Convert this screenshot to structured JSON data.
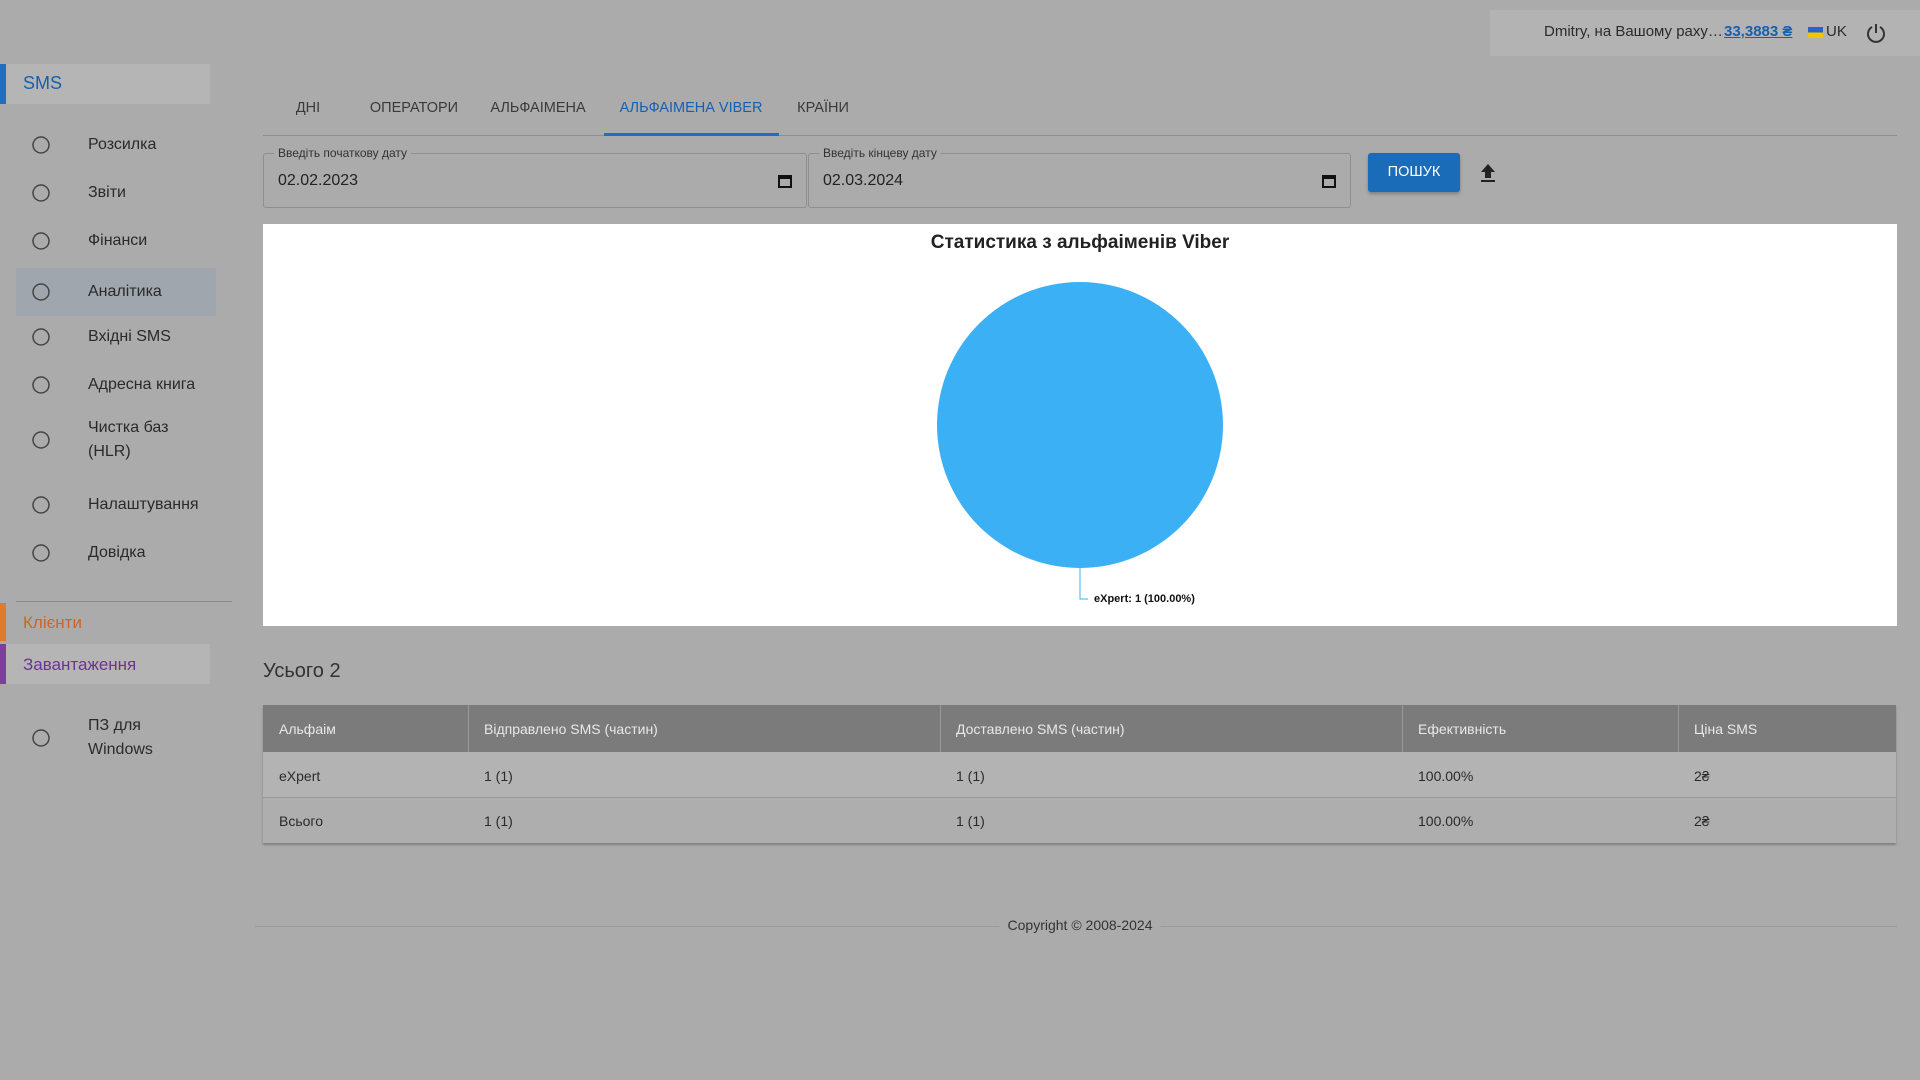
{
  "header": {
    "user": "Dmitry, на Вашому раху…",
    "balance": "33,3883 ₴",
    "language": "UK"
  },
  "sidebar": {
    "section": "SMS",
    "items": [
      "Розсилка",
      "Звіти",
      "Фінанси",
      "Аналітика",
      "Вхідні SMS",
      "Адресна книга",
      "Чистка баз (HLR)",
      "Налаштування",
      "Довідка"
    ],
    "clients": "Клієнти",
    "downloads": "Завантаження",
    "software": "ПЗ для Windows"
  },
  "tabs": [
    "ДНІ",
    "ОПЕРАТОРИ",
    "АЛЬФАІМЕНА",
    "АЛЬФАІМЕНА VIBER",
    "КРАЇНИ"
  ],
  "filters": {
    "start_label": "Введіть початкову дату",
    "start_value": "02.02.2023",
    "end_label": "Введіть кінцеву дату",
    "end_value": "02.03.2024",
    "search": "ПОШУК"
  },
  "chart_data": {
    "type": "pie",
    "title": "Статистика з альфаіменів Viber",
    "categories": [
      "eXpert"
    ],
    "values": [
      1
    ],
    "value_labels": [
      "eXpert: 1 (100.00%)"
    ],
    "colors": [
      "#3bb0f5"
    ]
  },
  "total": "Усього 2",
  "table": {
    "columns": [
      "Альфаім",
      "Відправлено SMS (частин)",
      "Доставлено SMS (частин)",
      "Ефективність",
      "Ціна SMS"
    ],
    "rows": [
      [
        "eXpert",
        "1 (1)",
        "1 (1)",
        "100.00%",
        "2₴"
      ],
      [
        "Всього",
        "1 (1)",
        "1 (1)",
        "100.00%",
        "2₴"
      ]
    ]
  },
  "footer": "Copyright © 2008-2024"
}
